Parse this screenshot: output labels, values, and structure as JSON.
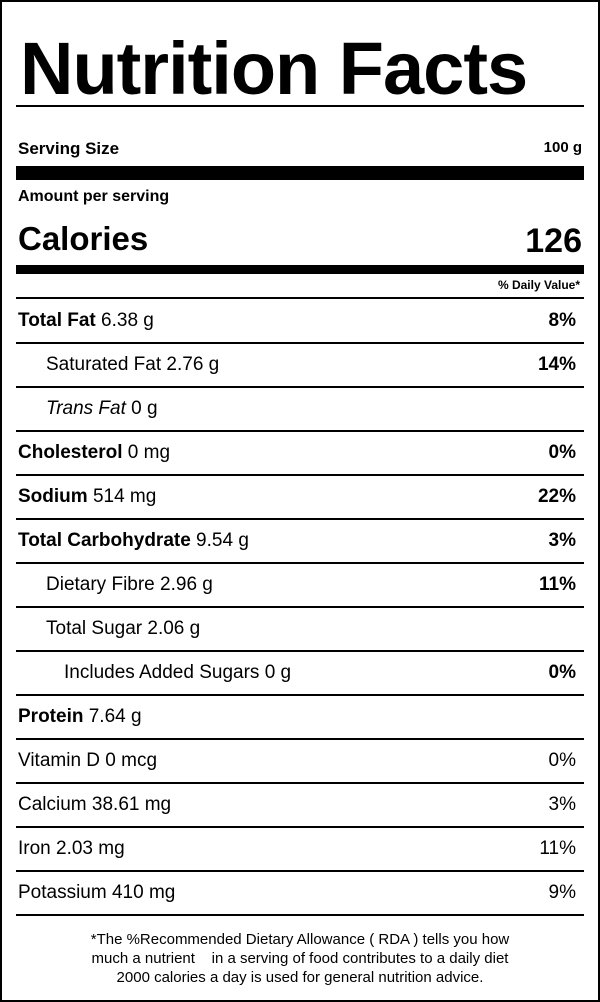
{
  "title": "Nutrition Facts",
  "serving": {
    "label": "Serving Size",
    "value": "100 g"
  },
  "amount_per_serving": "Amount per serving",
  "calories": {
    "label": "Calories",
    "value": "126"
  },
  "daily_value_header": "% Daily Value*",
  "nutrients": [
    {
      "label": "Total Fat",
      "amount": " 6.38 g",
      "dv": "8%"
    },
    {
      "label": "Saturated Fat 2.76 g",
      "amount": "",
      "dv": "14%"
    },
    {
      "label": "Trans Fat",
      "amount": " 0 g",
      "dv": ""
    },
    {
      "label": "Cholesterol",
      "amount": " 0 mg",
      "dv": "0%"
    },
    {
      "label": "Sodium",
      "amount": " 514 mg",
      "dv": "22%"
    },
    {
      "label": "Total Carbohydrate",
      "amount": " 9.54 g",
      "dv": "3%"
    },
    {
      "label": "Dietary Fibre 2.96 g",
      "amount": "",
      "dv": "11%"
    },
    {
      "label": "Total Sugar 2.06 g",
      "amount": "",
      "dv": ""
    },
    {
      "label": "Includes Added Sugars 0 g",
      "amount": "",
      "dv": "0%"
    },
    {
      "label": "Protein",
      "amount": " 7.64 g",
      "dv": ""
    },
    {
      "label": "Vitamin D 0 mcg",
      "amount": "",
      "dv": "0%"
    },
    {
      "label": "Calcium 38.61 mg",
      "amount": "",
      "dv": "3%"
    },
    {
      "label": "Iron 2.03 mg",
      "amount": "",
      "dv": "11%"
    },
    {
      "label": "Potassium 410 mg",
      "amount": "",
      "dv": "9%"
    }
  ],
  "footnote": {
    "line1": "*The %Recommended Dietary Allowance ( RDA ) tells you how",
    "line2": "much a nutrient    in a serving of food contributes to a daily diet",
    "line3": "2000 calories a day is used for general nutrition advice."
  }
}
